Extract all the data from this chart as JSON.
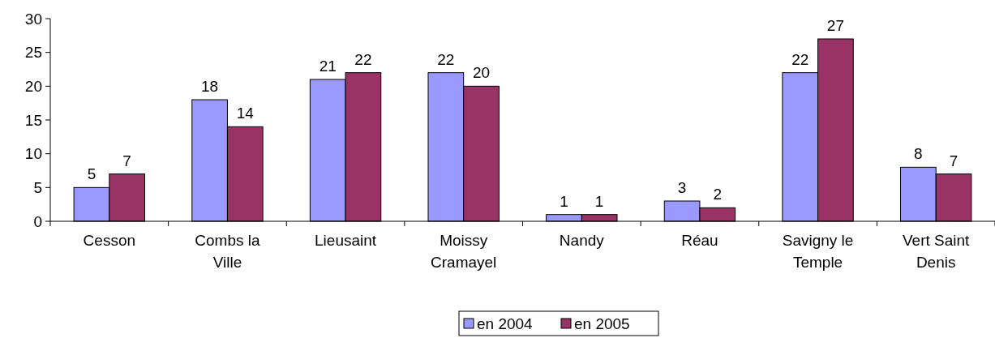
{
  "chart_data": {
    "type": "bar",
    "categories": [
      "Cesson",
      "Combs la Ville",
      "Lieusaint",
      "Moissy Cramayel",
      "Nandy",
      "Réau",
      "Savigny le Temple",
      "Vert Saint Denis"
    ],
    "series": [
      {
        "name": "en 2004",
        "color": "#9999ff",
        "values": [
          5,
          18,
          21,
          22,
          1,
          3,
          22,
          8
        ]
      },
      {
        "name": "en 2005",
        "color": "#993366",
        "values": [
          7,
          14,
          22,
          20,
          1,
          2,
          27,
          7
        ]
      }
    ],
    "ylim": [
      0,
      30
    ],
    "yticks": [
      0,
      5,
      10,
      15,
      20,
      25,
      30
    ],
    "data_labels": true,
    "legend": "bottom",
    "grid": false
  }
}
